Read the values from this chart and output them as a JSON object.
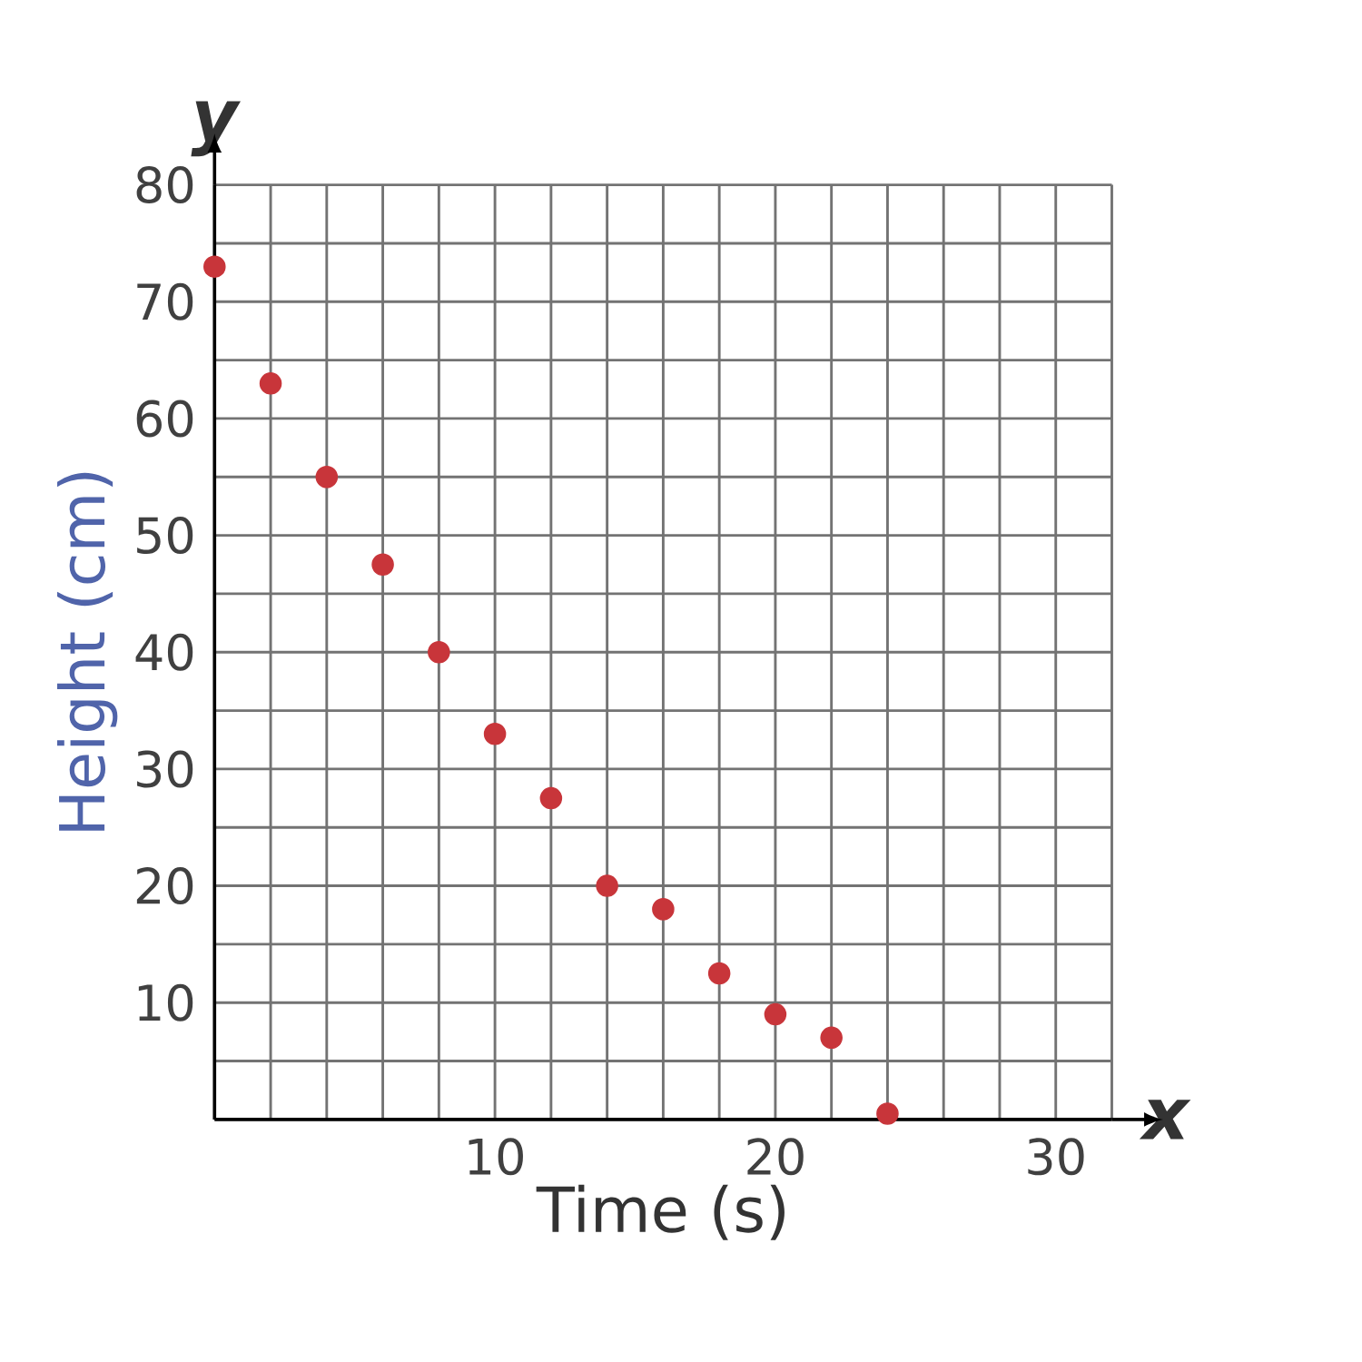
{
  "chart_data": {
    "type": "scatter",
    "xlabel": "Time (s)",
    "ylabel": "Height (cm)",
    "annotations": [
      "x",
      "y"
    ],
    "x": [
      0,
      2,
      4,
      6,
      8,
      10,
      12,
      14,
      16,
      18,
      20,
      22,
      24
    ],
    "series": [
      {
        "color": "#c8353a",
        "values": [
          73,
          63,
          55,
          47.5,
          40,
          33,
          27.5,
          20,
          18,
          12.5,
          9,
          7,
          0.5
        ]
      }
    ],
    "xlim": [
      0,
      32
    ],
    "ylim": [
      0,
      80
    ],
    "xticks": [
      {
        "value": 0,
        "label": null
      },
      {
        "value": 2,
        "label": null
      },
      {
        "value": 4,
        "label": null
      },
      {
        "value": 6,
        "label": null
      },
      {
        "value": 8,
        "label": null
      },
      10,
      {
        "value": 12,
        "label": null
      },
      {
        "value": 14,
        "label": null
      },
      {
        "value": 16,
        "label": null
      },
      {
        "value": 18,
        "label": null
      },
      20,
      {
        "value": 22,
        "label": null
      },
      {
        "value": 24,
        "label": null
      },
      {
        "value": 26,
        "label": null
      },
      {
        "value": 28,
        "label": null
      },
      30,
      {
        "value": 32,
        "label": null
      }
    ],
    "yticks": [
      {
        "value": 0,
        "label": null
      },
      {
        "value": 5,
        "label": null
      },
      10,
      {
        "value": 15,
        "label": null
      },
      20,
      {
        "value": 25,
        "label": null
      },
      30,
      {
        "value": 35,
        "label": null
      },
      40,
      {
        "value": 45,
        "label": null
      },
      50,
      {
        "value": 55,
        "label": null
      },
      60,
      {
        "value": 65,
        "label": null
      },
      70,
      {
        "value": 75,
        "label": null
      },
      80
    ],
    "grid": true,
    "marker": "circle"
  }
}
